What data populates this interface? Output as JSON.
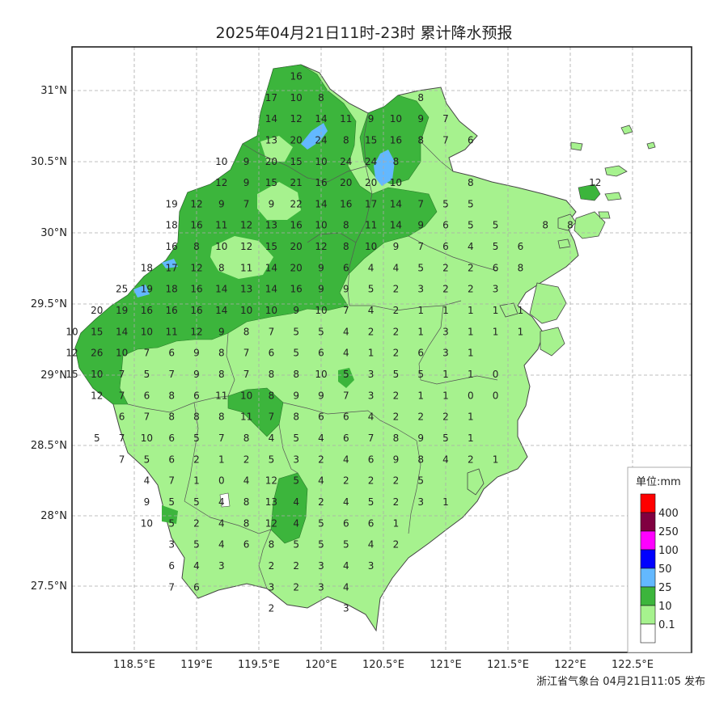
{
  "title": "2025年04月21日11时-23时 累计降水预报",
  "footer": "浙江省气象台 04月21日11:05 发布",
  "colors": {
    "white": "#ffffff",
    "light_green": "#a6f28e",
    "green": "#3cb53c",
    "light_blue": "#63b8ff",
    "blue": "#0000ff",
    "magenta": "#ff00ff",
    "maroon": "#800040",
    "red": "#ff0000",
    "grid": "#aaaaaa",
    "border": "#555555"
  },
  "axes": {
    "lon_ticks": [
      "118.5°E",
      "119°E",
      "119.5°E",
      "120°E",
      "120.5°E",
      "121°E",
      "121.5°E",
      "122°E",
      "122.5°E"
    ],
    "lat_ticks": [
      "31°N",
      "30.5°N",
      "30°N",
      "29.5°N",
      "29°N",
      "28.5°N",
      "28°N",
      "27.5°N"
    ]
  },
  "legend": {
    "unit": "单位:mm",
    "labels": [
      "400",
      "250",
      "100",
      "50",
      "25",
      "10",
      "0.1"
    ]
  },
  "grid_rows": [
    {
      "lat": 31.1,
      "cells": [
        [
          "119.8",
          "16"
        ]
      ]
    },
    {
      "lat": 30.95,
      "cells": [
        [
          "119.6",
          "17"
        ],
        [
          "119.8",
          "10"
        ],
        [
          "120.0",
          "8"
        ],
        [
          "120.8",
          "8"
        ]
      ]
    },
    {
      "lat": 30.8,
      "cells": [
        [
          "119.6",
          "14"
        ],
        [
          "119.8",
          "12"
        ],
        [
          "120.0",
          "14"
        ],
        [
          "120.2",
          "11"
        ],
        [
          "120.4",
          "9"
        ],
        [
          "120.6",
          "10"
        ],
        [
          "120.8",
          "9"
        ],
        [
          "121.0",
          "7"
        ]
      ]
    },
    {
      "lat": 30.65,
      "cells": [
        [
          "119.6",
          "13"
        ],
        [
          "119.8",
          "20"
        ],
        [
          "120.0",
          "24"
        ],
        [
          "120.2",
          "8"
        ],
        [
          "120.4",
          "15"
        ],
        [
          "120.6",
          "16"
        ],
        [
          "120.8",
          "8"
        ],
        [
          "121.0",
          "7"
        ],
        [
          "121.2",
          "6"
        ]
      ]
    },
    {
      "lat": 30.5,
      "cells": [
        [
          "119.2",
          "10"
        ],
        [
          "119.4",
          "9"
        ],
        [
          "119.6",
          "20"
        ],
        [
          "119.8",
          "15"
        ],
        [
          "120.0",
          "10"
        ],
        [
          "120.2",
          "24"
        ],
        [
          "120.4",
          "24"
        ],
        [
          "120.6",
          "8"
        ]
      ]
    },
    {
      "lat": 30.35,
      "cells": [
        [
          "119.2",
          "12"
        ],
        [
          "119.4",
          "9"
        ],
        [
          "119.6",
          "15"
        ],
        [
          "119.8",
          "21"
        ],
        [
          "120.0",
          "16"
        ],
        [
          "120.2",
          "20"
        ],
        [
          "120.4",
          "20"
        ],
        [
          "120.6",
          "10"
        ],
        [
          "121.2",
          "8"
        ],
        [
          "122.2",
          "12"
        ]
      ]
    },
    {
      "lat": 30.2,
      "cells": [
        [
          "118.8",
          "19"
        ],
        [
          "119.0",
          "12"
        ],
        [
          "119.2",
          "9"
        ],
        [
          "119.4",
          "7"
        ],
        [
          "119.6",
          "9"
        ],
        [
          "119.8",
          "22"
        ],
        [
          "120.0",
          "14"
        ],
        [
          "120.2",
          "16"
        ],
        [
          "120.4",
          "17"
        ],
        [
          "120.6",
          "14"
        ],
        [
          "120.8",
          "7"
        ],
        [
          "121.0",
          "5"
        ],
        [
          "121.2",
          "5"
        ]
      ]
    },
    {
      "lat": 30.05,
      "cells": [
        [
          "118.8",
          "18"
        ],
        [
          "119.0",
          "16"
        ],
        [
          "119.2",
          "11"
        ],
        [
          "119.4",
          "12"
        ],
        [
          "119.6",
          "13"
        ],
        [
          "119.8",
          "16"
        ],
        [
          "120.0",
          "10"
        ],
        [
          "120.2",
          "8"
        ],
        [
          "120.4",
          "11"
        ],
        [
          "120.6",
          "14"
        ],
        [
          "120.8",
          "9"
        ],
        [
          "121.0",
          "6"
        ],
        [
          "121.2",
          "5"
        ],
        [
          "121.4",
          "5"
        ],
        [
          "121.8",
          "8"
        ],
        [
          "122.0",
          "8"
        ]
      ]
    },
    {
      "lat": 29.9,
      "cells": [
        [
          "118.8",
          "16"
        ],
        [
          "119.0",
          "8"
        ],
        [
          "119.2",
          "10"
        ],
        [
          "119.4",
          "12"
        ],
        [
          "119.6",
          "15"
        ],
        [
          "119.8",
          "20"
        ],
        [
          "120.0",
          "12"
        ],
        [
          "120.2",
          "8"
        ],
        [
          "120.4",
          "10"
        ],
        [
          "120.6",
          "9"
        ],
        [
          "120.8",
          "7"
        ],
        [
          "121.0",
          "6"
        ],
        [
          "121.2",
          "4"
        ],
        [
          "121.4",
          "5"
        ],
        [
          "121.6",
          "6"
        ]
      ]
    },
    {
      "lat": 29.75,
      "cells": [
        [
          "118.6",
          "18"
        ],
        [
          "118.8",
          "17"
        ],
        [
          "119.0",
          "12"
        ],
        [
          "119.2",
          "8"
        ],
        [
          "119.4",
          "11"
        ],
        [
          "119.6",
          "14"
        ],
        [
          "119.8",
          "20"
        ],
        [
          "120.0",
          "9"
        ],
        [
          "120.2",
          "6"
        ],
        [
          "120.4",
          "4"
        ],
        [
          "120.6",
          "4"
        ],
        [
          "120.8",
          "5"
        ],
        [
          "121.0",
          "2"
        ],
        [
          "121.2",
          "2"
        ],
        [
          "121.4",
          "6"
        ],
        [
          "121.6",
          "8"
        ]
      ]
    },
    {
      "lat": 29.6,
      "cells": [
        [
          "118.4",
          "25"
        ],
        [
          "118.6",
          "19"
        ],
        [
          "118.8",
          "18"
        ],
        [
          "119.0",
          "16"
        ],
        [
          "119.2",
          "14"
        ],
        [
          "119.4",
          "13"
        ],
        [
          "119.6",
          "14"
        ],
        [
          "119.8",
          "16"
        ],
        [
          "120.0",
          "9"
        ],
        [
          "120.2",
          "9"
        ],
        [
          "120.4",
          "5"
        ],
        [
          "120.6",
          "2"
        ],
        [
          "120.8",
          "3"
        ],
        [
          "121.0",
          "2"
        ],
        [
          "121.2",
          "2"
        ],
        [
          "121.4",
          "3"
        ]
      ]
    },
    {
      "lat": 29.45,
      "cells": [
        [
          "118.2",
          "20"
        ],
        [
          "118.4",
          "19"
        ],
        [
          "118.6",
          "16"
        ],
        [
          "118.8",
          "16"
        ],
        [
          "119.0",
          "16"
        ],
        [
          "119.2",
          "14"
        ],
        [
          "119.4",
          "10"
        ],
        [
          "119.6",
          "10"
        ],
        [
          "119.8",
          "9"
        ],
        [
          "120.0",
          "10"
        ],
        [
          "120.2",
          "7"
        ],
        [
          "120.4",
          "4"
        ],
        [
          "120.6",
          "2"
        ],
        [
          "120.8",
          "1"
        ],
        [
          "121.0",
          "1"
        ],
        [
          "121.2",
          "1"
        ],
        [
          "121.4",
          "1"
        ],
        [
          "121.6",
          "1"
        ]
      ]
    },
    {
      "lat": 29.3,
      "cells": [
        [
          "118.0",
          "10"
        ],
        [
          "118.2",
          "15"
        ],
        [
          "118.4",
          "14"
        ],
        [
          "118.6",
          "10"
        ],
        [
          "118.8",
          "11"
        ],
        [
          "119.0",
          "12"
        ],
        [
          "119.2",
          "9"
        ],
        [
          "119.4",
          "8"
        ],
        [
          "119.6",
          "7"
        ],
        [
          "119.8",
          "5"
        ],
        [
          "120.0",
          "5"
        ],
        [
          "120.2",
          "4"
        ],
        [
          "120.4",
          "2"
        ],
        [
          "120.6",
          "2"
        ],
        [
          "120.8",
          "1"
        ],
        [
          "121.0",
          "3"
        ],
        [
          "121.2",
          "1"
        ],
        [
          "121.4",
          "1"
        ],
        [
          "121.6",
          "1"
        ]
      ]
    },
    {
      "lat": 29.15,
      "cells": [
        [
          "118.0",
          "12"
        ],
        [
          "118.2",
          "26"
        ],
        [
          "118.4",
          "10"
        ],
        [
          "118.6",
          "7"
        ],
        [
          "118.8",
          "6"
        ],
        [
          "119.0",
          "9"
        ],
        [
          "119.2",
          "8"
        ],
        [
          "119.4",
          "7"
        ],
        [
          "119.6",
          "6"
        ],
        [
          "119.8",
          "5"
        ],
        [
          "120.0",
          "6"
        ],
        [
          "120.2",
          "4"
        ],
        [
          "120.4",
          "1"
        ],
        [
          "120.6",
          "2"
        ],
        [
          "120.8",
          "6"
        ],
        [
          "121.0",
          "3"
        ],
        [
          "121.2",
          "1"
        ]
      ]
    },
    {
      "lat": 29.0,
      "cells": [
        [
          "118.0",
          "15"
        ],
        [
          "118.2",
          "10"
        ],
        [
          "118.4",
          "7"
        ],
        [
          "118.6",
          "5"
        ],
        [
          "118.8",
          "7"
        ],
        [
          "119.0",
          "9"
        ],
        [
          "119.2",
          "8"
        ],
        [
          "119.4",
          "7"
        ],
        [
          "119.6",
          "8"
        ],
        [
          "119.8",
          "8"
        ],
        [
          "120.0",
          "10"
        ],
        [
          "120.2",
          "5"
        ],
        [
          "120.4",
          "3"
        ],
        [
          "120.6",
          "5"
        ],
        [
          "120.8",
          "5"
        ],
        [
          "121.0",
          "1"
        ],
        [
          "121.2",
          "1"
        ],
        [
          "121.4",
          "0"
        ]
      ]
    },
    {
      "lat": 28.85,
      "cells": [
        [
          "118.2",
          "12"
        ],
        [
          "118.4",
          "7"
        ],
        [
          "118.6",
          "6"
        ],
        [
          "118.8",
          "8"
        ],
        [
          "119.0",
          "6"
        ],
        [
          "119.2",
          "11"
        ],
        [
          "119.4",
          "10"
        ],
        [
          "119.6",
          "8"
        ],
        [
          "119.8",
          "9"
        ],
        [
          "120.0",
          "9"
        ],
        [
          "120.2",
          "7"
        ],
        [
          "120.4",
          "3"
        ],
        [
          "120.6",
          "2"
        ],
        [
          "120.8",
          "1"
        ],
        [
          "121.0",
          "1"
        ],
        [
          "121.2",
          "0"
        ],
        [
          "121.4",
          "0"
        ]
      ]
    },
    {
      "lat": 28.7,
      "cells": [
        [
          "118.4",
          "6"
        ],
        [
          "118.6",
          "7"
        ],
        [
          "118.8",
          "8"
        ],
        [
          "119.0",
          "8"
        ],
        [
          "119.2",
          "8"
        ],
        [
          "119.4",
          "11"
        ],
        [
          "119.6",
          "7"
        ],
        [
          "119.8",
          "8"
        ],
        [
          "120.0",
          "6"
        ],
        [
          "120.2",
          "6"
        ],
        [
          "120.4",
          "4"
        ],
        [
          "120.6",
          "2"
        ],
        [
          "120.8",
          "2"
        ],
        [
          "121.0",
          "2"
        ],
        [
          "121.2",
          "1"
        ]
      ]
    },
    {
      "lat": 28.55,
      "cells": [
        [
          "118.2",
          "5"
        ],
        [
          "118.4",
          "7"
        ],
        [
          "118.6",
          "10"
        ],
        [
          "118.8",
          "6"
        ],
        [
          "119.0",
          "5"
        ],
        [
          "119.2",
          "7"
        ],
        [
          "119.4",
          "8"
        ],
        [
          "119.6",
          "4"
        ],
        [
          "119.8",
          "5"
        ],
        [
          "120.0",
          "4"
        ],
        [
          "120.2",
          "6"
        ],
        [
          "120.4",
          "7"
        ],
        [
          "120.6",
          "8"
        ],
        [
          "120.8",
          "9"
        ],
        [
          "121.0",
          "5"
        ],
        [
          "121.2",
          "1"
        ]
      ]
    },
    {
      "lat": 28.4,
      "cells": [
        [
          "118.4",
          "7"
        ],
        [
          "118.6",
          "5"
        ],
        [
          "118.8",
          "6"
        ],
        [
          "119.0",
          "2"
        ],
        [
          "119.2",
          "1"
        ],
        [
          "119.4",
          "2"
        ],
        [
          "119.6",
          "5"
        ],
        [
          "119.8",
          "3"
        ],
        [
          "120.0",
          "2"
        ],
        [
          "120.2",
          "4"
        ],
        [
          "120.4",
          "6"
        ],
        [
          "120.6",
          "9"
        ],
        [
          "120.8",
          "8"
        ],
        [
          "121.0",
          "4"
        ],
        [
          "121.2",
          "2"
        ],
        [
          "121.4",
          "1"
        ]
      ]
    },
    {
      "lat": 28.25,
      "cells": [
        [
          "118.6",
          "4"
        ],
        [
          "118.8",
          "7"
        ],
        [
          "119.0",
          "1"
        ],
        [
          "119.2",
          "0"
        ],
        [
          "119.4",
          "4"
        ],
        [
          "119.6",
          "12"
        ],
        [
          "119.8",
          "5"
        ],
        [
          "120.0",
          "4"
        ],
        [
          "120.2",
          "2"
        ],
        [
          "120.4",
          "2"
        ],
        [
          "120.6",
          "2"
        ],
        [
          "120.8",
          "5"
        ]
      ]
    },
    {
      "lat": 28.1,
      "cells": [
        [
          "118.6",
          "9"
        ],
        [
          "118.8",
          "5"
        ],
        [
          "119.0",
          "5"
        ],
        [
          "119.2",
          "4"
        ],
        [
          "119.4",
          "8"
        ],
        [
          "119.6",
          "13"
        ],
        [
          "119.8",
          "4"
        ],
        [
          "120.0",
          "2"
        ],
        [
          "120.2",
          "4"
        ],
        [
          "120.4",
          "5"
        ],
        [
          "120.6",
          "2"
        ],
        [
          "120.8",
          "3"
        ],
        [
          "121.0",
          "1"
        ]
      ]
    },
    {
      "lat": 27.95,
      "cells": [
        [
          "118.6",
          "10"
        ],
        [
          "118.8",
          "5"
        ],
        [
          "119.0",
          "2"
        ],
        [
          "119.2",
          "4"
        ],
        [
          "119.4",
          "8"
        ],
        [
          "119.6",
          "12"
        ],
        [
          "119.8",
          "4"
        ],
        [
          "120.0",
          "5"
        ],
        [
          "120.2",
          "6"
        ],
        [
          "120.4",
          "6"
        ],
        [
          "120.6",
          "1"
        ]
      ]
    },
    {
      "lat": 27.8,
      "cells": [
        [
          "118.8",
          "3"
        ],
        [
          "119.0",
          "5"
        ],
        [
          "119.2",
          "4"
        ],
        [
          "119.4",
          "6"
        ],
        [
          "119.6",
          "8"
        ],
        [
          "119.8",
          "5"
        ],
        [
          "120.0",
          "5"
        ],
        [
          "120.2",
          "5"
        ],
        [
          "120.4",
          "4"
        ],
        [
          "120.6",
          "2"
        ]
      ]
    },
    {
      "lat": 27.65,
      "cells": [
        [
          "118.8",
          "6"
        ],
        [
          "119.0",
          "4"
        ],
        [
          "119.2",
          "3"
        ],
        [
          "119.6",
          "2"
        ],
        [
          "119.8",
          "2"
        ],
        [
          "120.0",
          "3"
        ],
        [
          "120.2",
          "4"
        ],
        [
          "120.4",
          "3"
        ]
      ]
    },
    {
      "lat": 27.5,
      "cells": [
        [
          "118.8",
          "7"
        ],
        [
          "119.0",
          "6"
        ],
        [
          "119.6",
          "3"
        ],
        [
          "119.8",
          "2"
        ],
        [
          "120.0",
          "3"
        ],
        [
          "120.2",
          "4"
        ]
      ]
    },
    {
      "lat": 27.35,
      "cells": [
        [
          "119.6",
          "2"
        ],
        [
          "120.2",
          "3"
        ]
      ]
    }
  ]
}
